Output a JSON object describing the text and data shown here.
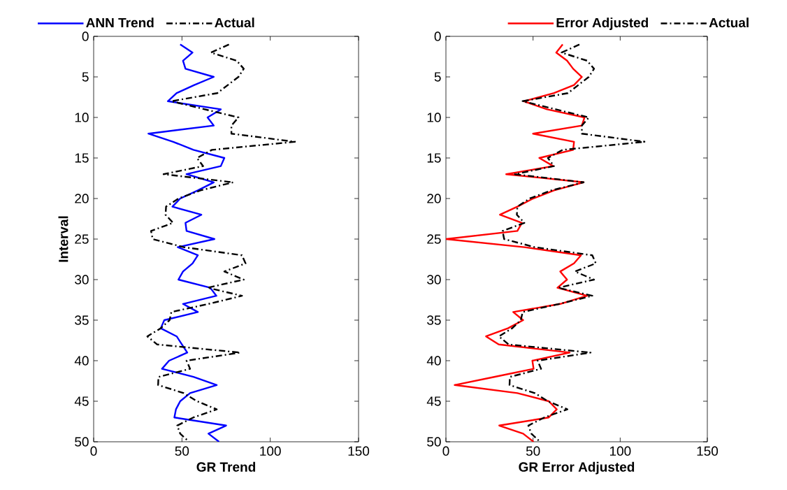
{
  "chart_data": [
    {
      "type": "line",
      "xlabel": "GR Trend",
      "ylabel": "Interval",
      "xlim": [
        0,
        150
      ],
      "xticks": [
        0,
        50,
        100,
        150
      ],
      "ylim": [
        50,
        0
      ],
      "yticks": [
        0,
        5,
        10,
        15,
        20,
        25,
        30,
        35,
        40,
        45,
        50
      ],
      "grid": false,
      "legend": "top",
      "series": [
        {
          "name": "ANN Trend",
          "color": "#0000ff",
          "line_style": "solid",
          "x": [
            49,
            56,
            50.6,
            52,
            68,
            57,
            47,
            42,
            72,
            64.5,
            68,
            31,
            45,
            56.5,
            74,
            72,
            52.6,
            68,
            59,
            49,
            44.6,
            61,
            52,
            52.6,
            68.4,
            47.6,
            59,
            56,
            50.6,
            48,
            66,
            69.5,
            50.6,
            59,
            40,
            38,
            47,
            50,
            53,
            42.7,
            38.7,
            56.5,
            69.7,
            54.6,
            49,
            46.6,
            45.7,
            75,
            65,
            71
          ],
          "values": [
            1,
            2,
            3,
            4,
            5,
            6,
            7,
            8,
            9,
            10,
            11,
            12,
            13,
            14,
            15,
            16,
            17,
            18,
            19,
            20,
            21,
            22,
            23,
            24,
            25,
            26,
            27,
            28,
            29,
            30,
            31,
            32,
            33,
            34,
            35,
            36,
            37,
            38,
            39,
            40,
            41,
            42,
            43,
            44,
            45,
            46,
            47,
            48,
            49,
            50
          ]
        },
        {
          "name": "Actual",
          "color": "#000000",
          "line_style": "dashdot",
          "x": [
            76.6,
            66.4,
            81,
            85,
            82,
            76,
            70,
            44,
            63,
            82,
            78,
            78,
            114,
            67,
            58.5,
            62,
            39.6,
            79,
            60.5,
            48,
            41,
            40.7,
            45,
            32.5,
            33.4,
            51,
            84,
            86,
            74,
            85,
            64.5,
            84,
            65,
            44,
            43,
            38,
            30.4,
            36,
            83,
            52.6,
            54.6,
            36.7,
            36.5,
            51,
            58.5,
            69.7,
            56.5,
            47.3,
            49,
            54
          ],
          "values": [
            1,
            2,
            3,
            4,
            5,
            6,
            7,
            8,
            9,
            10,
            11,
            12,
            13,
            14,
            15,
            16,
            17,
            18,
            19,
            20,
            21,
            22,
            23,
            24,
            25,
            26,
            27,
            28,
            29,
            30,
            31,
            32,
            33,
            34,
            35,
            36,
            37,
            38,
            39,
            40,
            41,
            42,
            43,
            44,
            45,
            46,
            47,
            48,
            49,
            50
          ]
        }
      ]
    },
    {
      "type": "line",
      "xlabel": "GR Error Adjusted",
      "xlim": [
        0,
        150
      ],
      "xticks": [
        0,
        50,
        100,
        150
      ],
      "ylim": [
        50,
        0
      ],
      "yticks": [
        0,
        5,
        10,
        15,
        20,
        25,
        30,
        35,
        40,
        45,
        50
      ],
      "grid": false,
      "legend": "top",
      "series": [
        {
          "name": "Error Adjusted",
          "color": "#ff0000",
          "line_style": "solid",
          "x": [
            67,
            63.3,
            69.5,
            73,
            78,
            73.5,
            62,
            44.7,
            58,
            79.5,
            78,
            50,
            73.5,
            73,
            53.6,
            61.6,
            34.6,
            79,
            62,
            50,
            41,
            31,
            43.6,
            41,
            0,
            45,
            77.5,
            73.5,
            65.6,
            69.5,
            64,
            81,
            65.6,
            38.6,
            44.3,
            35.6,
            23,
            30.3,
            71,
            49.6,
            50.3,
            27.7,
            5,
            41,
            59,
            63.6,
            59,
            30.6,
            44.3,
            50.3
          ],
          "values": [
            1,
            2,
            3,
            4,
            5,
            6,
            7,
            8,
            9,
            10,
            11,
            12,
            13,
            14,
            15,
            16,
            17,
            18,
            19,
            20,
            21,
            22,
            23,
            24,
            25,
            26,
            27,
            28,
            29,
            30,
            31,
            32,
            33,
            34,
            35,
            36,
            37,
            38,
            39,
            40,
            41,
            42,
            43,
            44,
            45,
            46,
            47,
            48,
            49,
            50
          ]
        },
        {
          "name": "Actual",
          "color": "#000000",
          "line_style": "dashdot",
          "x": [
            76.6,
            66.4,
            81,
            85,
            82,
            76,
            70,
            44,
            63,
            82,
            78,
            78,
            114,
            67,
            58.5,
            62,
            39.6,
            79,
            60.5,
            48,
            41,
            40.7,
            45,
            32.5,
            33.4,
            51,
            84,
            86,
            74,
            85,
            64.5,
            84,
            65,
            44,
            43,
            38,
            30.4,
            36,
            83,
            52.6,
            54.6,
            36.7,
            36.5,
            51,
            58.5,
            69.7,
            56.5,
            47.3,
            49,
            54
          ],
          "values": [
            1,
            2,
            3,
            4,
            5,
            6,
            7,
            8,
            9,
            10,
            11,
            12,
            13,
            14,
            15,
            16,
            17,
            18,
            19,
            20,
            21,
            22,
            23,
            24,
            25,
            26,
            27,
            28,
            29,
            30,
            31,
            32,
            33,
            34,
            35,
            36,
            37,
            38,
            39,
            40,
            41,
            42,
            43,
            44,
            45,
            46,
            47,
            48,
            49,
            50
          ]
        }
      ]
    }
  ]
}
